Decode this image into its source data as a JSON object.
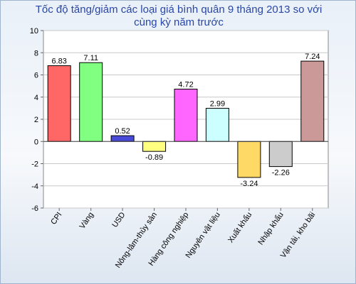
{
  "chart_data": {
    "type": "bar",
    "title_lines": [
      "Tốc độ tăng/giảm các loại giá bình quân 9 tháng 2013 so với",
      "cùng kỳ năm trước"
    ],
    "categories": [
      "CPI",
      "Vàng",
      "USD",
      "Nông-lâm-thủy sản",
      "Hàng công nghiệp",
      "Nguyên vật liệu",
      "Xuất khẩu",
      "Nhập khẩu",
      "Vận tải, kho bãi"
    ],
    "values": [
      6.83,
      7.11,
      0.52,
      -0.89,
      4.72,
      2.99,
      -3.24,
      -2.26,
      7.24
    ],
    "value_labels": [
      "6.83",
      "7.11",
      "0.52",
      "-0.89",
      "4.72",
      "2.99",
      "-3.24",
      "-2.26",
      "7.24"
    ],
    "colors": [
      "#ff6666",
      "#80ff80",
      "#4a4ad9",
      "#ffff80",
      "#ff66ff",
      "#ccffff",
      "#ffd966",
      "#cccccc",
      "#cc9999"
    ],
    "ylim": [
      -6,
      10
    ],
    "yticks": [
      -6,
      -4,
      -2,
      0,
      2,
      4,
      6,
      8,
      10
    ],
    "grid": true,
    "xlabel": "",
    "ylabel": ""
  }
}
